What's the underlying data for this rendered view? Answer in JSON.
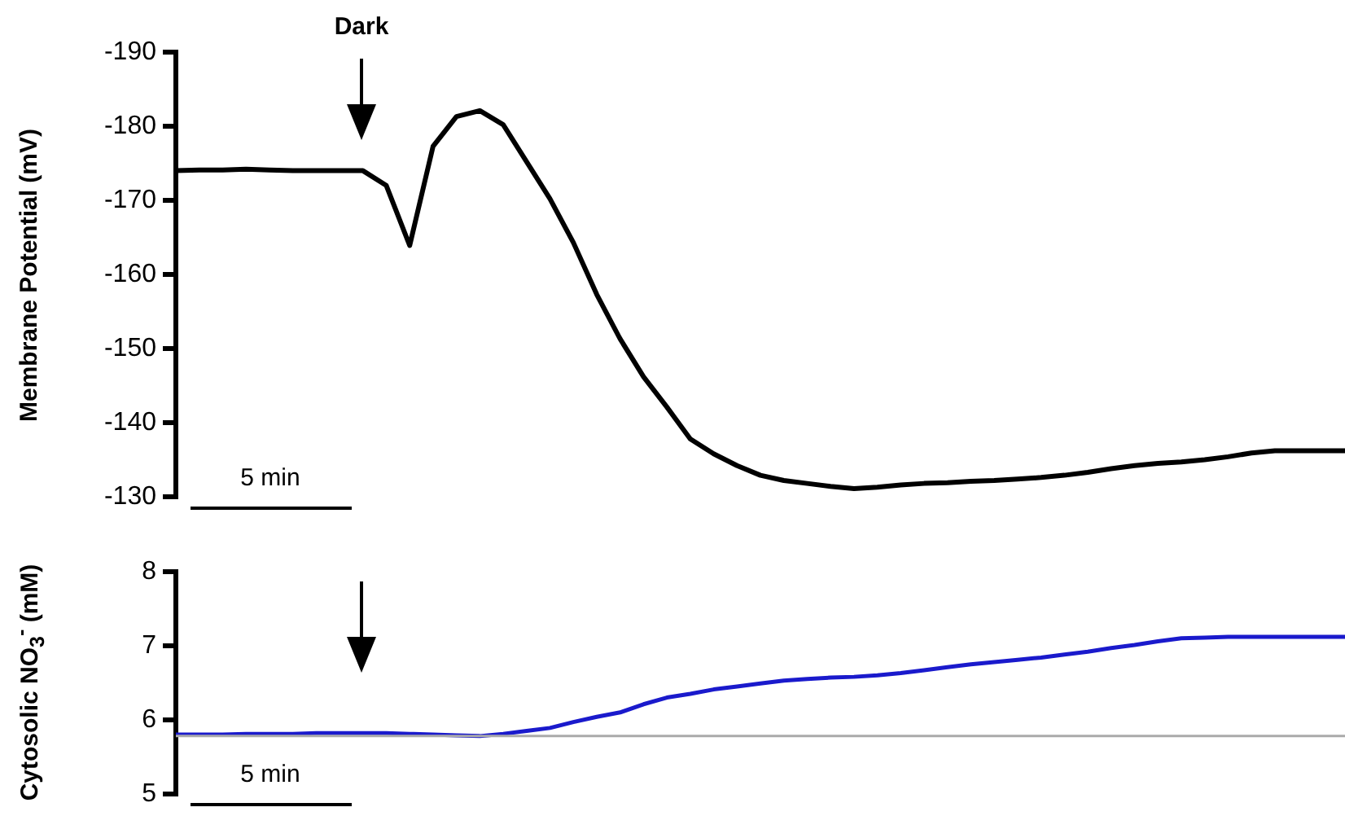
{
  "chart_data": [
    {
      "type": "line",
      "ylabel": "Membrane Potential (mV)",
      "ylim": [
        -130,
        -190
      ],
      "yticks": [
        -190,
        -180,
        -170,
        -160,
        -150,
        -140,
        -130
      ],
      "tick_labels": "y",
      "grid": false,
      "legend": false,
      "marker": "none",
      "annotations": [
        "Dark",
        "5 min"
      ],
      "categories": [
        null,
        null,
        null,
        null,
        null,
        null,
        null,
        null,
        null,
        null,
        null,
        null,
        null,
        null,
        null,
        null,
        null,
        null,
        null,
        null,
        null,
        null,
        null,
        null,
        null,
        null,
        null,
        null,
        null,
        null,
        null,
        null,
        null,
        null,
        null,
        null,
        null,
        null,
        null,
        null,
        null,
        null,
        null,
        null,
        null,
        null,
        null,
        null,
        null,
        null,
        null
      ],
      "series": [
        {
          "color": "#000000",
          "values": [
            -174,
            -174.1,
            -174.1,
            -174.2,
            -174.1,
            -174,
            -174,
            -174,
            -174,
            -172,
            -163.9,
            -177.3,
            -181.3,
            -182.1,
            -180.2,
            -175.2,
            -170.2,
            -164.3,
            -157.3,
            -151.3,
            -146.2,
            -142.1,
            -137.8,
            -135.8,
            -134.2,
            -132.9,
            -132.2,
            -131.8,
            -131.4,
            -131.1,
            -131.3,
            -131.6,
            -131.8,
            -131.9,
            -132.1,
            -132.2,
            -132.4,
            -132.6,
            -132.9,
            -133.3,
            -133.8,
            -134.2,
            -134.5,
            -134.7,
            -135,
            -135.4,
            -135.9,
            -136.2,
            -136.2,
            -136.2,
            -136.2
          ]
        }
      ]
    },
    {
      "type": "line",
      "ylabel": "Cytosolic NO$_{3}$$^{-}$ (mM)",
      "ylim": [
        5,
        8
      ],
      "yticks": [
        5,
        6,
        7,
        8
      ],
      "tick_labels": "y",
      "grid": false,
      "legend": false,
      "marker": "none",
      "annotations": [
        "5 min"
      ],
      "categories": [
        null,
        null,
        null,
        null,
        null,
        null,
        null,
        null,
        null,
        null,
        null,
        null,
        null,
        null,
        null,
        null,
        null,
        null,
        null,
        null,
        null,
        null,
        null,
        null,
        null,
        null,
        null,
        null,
        null,
        null,
        null,
        null,
        null,
        null,
        null,
        null,
        null,
        null,
        null,
        null,
        null,
        null,
        null,
        null,
        null,
        null,
        null,
        null,
        null,
        null,
        null
      ],
      "ref_lines": [
        {
          "axis": "y",
          "value": 5.78,
          "color": "#aaaaaa"
        }
      ],
      "series": [
        {
          "color": "#1a1acc",
          "values": [
            5.8,
            5.8,
            5.8,
            5.81,
            5.81,
            5.81,
            5.82,
            5.82,
            5.82,
            5.82,
            5.81,
            5.8,
            5.79,
            5.78,
            5.81,
            5.85,
            5.89,
            5.97,
            6.04,
            6.1,
            6.21,
            6.3,
            6.35,
            6.41,
            6.45,
            6.49,
            6.53,
            6.55,
            6.57,
            6.58,
            6.6,
            6.63,
            6.67,
            6.71,
            6.75,
            6.78,
            6.81,
            6.84,
            6.88,
            6.92,
            6.97,
            7.01,
            7.06,
            7.1,
            7.11,
            7.12,
            7.12,
            7.12,
            7.12,
            7.12,
            7.12
          ]
        }
      ]
    }
  ]
}
